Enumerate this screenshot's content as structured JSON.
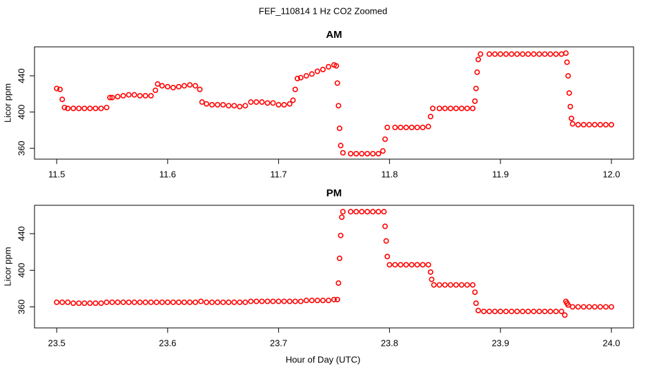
{
  "title": "FEF_110814  1 Hz CO2 Zoomed",
  "xlabel": "Hour of Day (UTC)",
  "chart_data": [
    {
      "type": "scatter",
      "title": "AM",
      "ylabel": "Licor ppm",
      "color": "#ff0000",
      "xlim": [
        11.48,
        12.02
      ],
      "ylim": [
        348,
        472
      ],
      "xticks": [
        11.5,
        11.6,
        11.7,
        11.8,
        11.9,
        {
          "value": 12,
          "label": "12.0"
        }
      ],
      "yticks": [
        360,
        400,
        440
      ],
      "x": [
        11.5,
        11.503,
        11.505,
        11.507,
        11.51,
        11.515,
        11.52,
        11.525,
        11.53,
        11.535,
        11.54,
        11.545,
        11.548,
        11.55,
        11.555,
        11.56,
        11.565,
        11.57,
        11.575,
        11.58,
        11.585,
        11.589,
        11.591,
        11.595,
        11.6,
        11.605,
        11.61,
        11.615,
        11.62,
        11.625,
        11.629,
        11.631,
        11.635,
        11.64,
        11.645,
        11.65,
        11.655,
        11.66,
        11.665,
        11.67,
        11.675,
        11.68,
        11.685,
        11.69,
        11.695,
        11.7,
        11.705,
        11.71,
        11.713,
        11.715,
        11.717,
        11.72,
        11.725,
        11.73,
        11.735,
        11.74,
        11.745,
        11.75,
        11.752,
        11.753,
        11.754,
        11.755,
        11.756,
        11.758,
        11.765,
        11.77,
        11.775,
        11.78,
        11.785,
        11.79,
        11.794,
        11.796,
        11.798,
        11.805,
        11.81,
        11.815,
        11.82,
        11.825,
        11.83,
        11.835,
        11.837,
        11.839,
        11.845,
        11.85,
        11.855,
        11.86,
        11.865,
        11.87,
        11.875,
        11.877,
        11.878,
        11.879,
        11.88,
        11.882,
        11.89,
        11.895,
        11.9,
        11.905,
        11.91,
        11.915,
        11.92,
        11.925,
        11.93,
        11.935,
        11.94,
        11.945,
        11.95,
        11.955,
        11.959,
        11.96,
        11.961,
        11.962,
        11.963,
        11.964,
        11.965,
        11.97,
        11.975,
        11.98,
        11.985,
        11.99,
        11.995,
        12.0
      ],
      "values": [
        426,
        425,
        414,
        405,
        404,
        404,
        404,
        404,
        404,
        404,
        404,
        405,
        416,
        416,
        417,
        418,
        419,
        419,
        418,
        418,
        418,
        424,
        431,
        429,
        428,
        427,
        428,
        429,
        430,
        429,
        425,
        411,
        409,
        408,
        408,
        408,
        407,
        407,
        406,
        407,
        411,
        411,
        411,
        410,
        410,
        408,
        408,
        409,
        413,
        425,
        437,
        438,
        440,
        442,
        445,
        447,
        450,
        452,
        451,
        432,
        407,
        382,
        363,
        355,
        354,
        354,
        354,
        354,
        354,
        354,
        357,
        370,
        383,
        383,
        383,
        383,
        383,
        383,
        383,
        384,
        395,
        404,
        404,
        404,
        404,
        404,
        404,
        404,
        404,
        412,
        426,
        444,
        458,
        464,
        464,
        464,
        464,
        464,
        464,
        464,
        464,
        464,
        464,
        464,
        464,
        464,
        464,
        464,
        465,
        455,
        440,
        421,
        406,
        393,
        387,
        386,
        386,
        386,
        386,
        386,
        386,
        386
      ]
    },
    {
      "type": "scatter",
      "title": "PM",
      "ylabel": "Licor ppm",
      "color": "#ff0000",
      "xlim": [
        23.48,
        24.02
      ],
      "ylim": [
        337,
        471
      ],
      "xticks": [
        23.5,
        23.6,
        23.7,
        23.8,
        23.9,
        {
          "value": 24,
          "label": "24.0"
        }
      ],
      "yticks": [
        360,
        400,
        440
      ],
      "x": [
        23.5,
        23.505,
        23.51,
        23.515,
        23.52,
        23.525,
        23.53,
        23.535,
        23.54,
        23.545,
        23.55,
        23.555,
        23.56,
        23.565,
        23.57,
        23.575,
        23.58,
        23.585,
        23.59,
        23.595,
        23.6,
        23.605,
        23.61,
        23.615,
        23.62,
        23.625,
        23.63,
        23.635,
        23.64,
        23.645,
        23.65,
        23.655,
        23.66,
        23.665,
        23.67,
        23.675,
        23.68,
        23.685,
        23.69,
        23.695,
        23.7,
        23.705,
        23.71,
        23.715,
        23.72,
        23.725,
        23.73,
        23.735,
        23.74,
        23.745,
        23.75,
        23.753,
        23.754,
        23.755,
        23.756,
        23.757,
        23.758,
        23.765,
        23.77,
        23.775,
        23.78,
        23.785,
        23.79,
        23.795,
        23.796,
        23.797,
        23.798,
        23.8,
        23.805,
        23.81,
        23.815,
        23.82,
        23.825,
        23.83,
        23.835,
        23.837,
        23.838,
        23.84,
        23.845,
        23.85,
        23.855,
        23.86,
        23.865,
        23.87,
        23.875,
        23.877,
        23.878,
        23.88,
        23.885,
        23.89,
        23.895,
        23.9,
        23.905,
        23.91,
        23.915,
        23.92,
        23.925,
        23.93,
        23.935,
        23.94,
        23.945,
        23.95,
        23.955,
        23.958,
        23.959,
        23.96,
        23.961,
        23.965,
        23.97,
        23.975,
        23.98,
        23.985,
        23.99,
        23.995,
        24.0
      ],
      "values": [
        365,
        365,
        365,
        364,
        364,
        364,
        364,
        364,
        364,
        365,
        365,
        365,
        365,
        365,
        365,
        365,
        365,
        365,
        365,
        365,
        365,
        365,
        365,
        365,
        365,
        365,
        366,
        365,
        365,
        365,
        365,
        365,
        365,
        365,
        365,
        366,
        366,
        366,
        366,
        366,
        366,
        366,
        366,
        366,
        366,
        367,
        367,
        367,
        367,
        367,
        368,
        368,
        386,
        413,
        438,
        458,
        464,
        464,
        464,
        464,
        464,
        464,
        464,
        464,
        448,
        432,
        415,
        406,
        406,
        406,
        406,
        406,
        406,
        406,
        406,
        398,
        390,
        384,
        384,
        384,
        384,
        384,
        384,
        384,
        384,
        376,
        364,
        356,
        355,
        355,
        355,
        355,
        355,
        355,
        355,
        355,
        355,
        355,
        355,
        355,
        355,
        355,
        355,
        351,
        366,
        364,
        362,
        360,
        360,
        360,
        360,
        360,
        360,
        360,
        360
      ]
    }
  ]
}
